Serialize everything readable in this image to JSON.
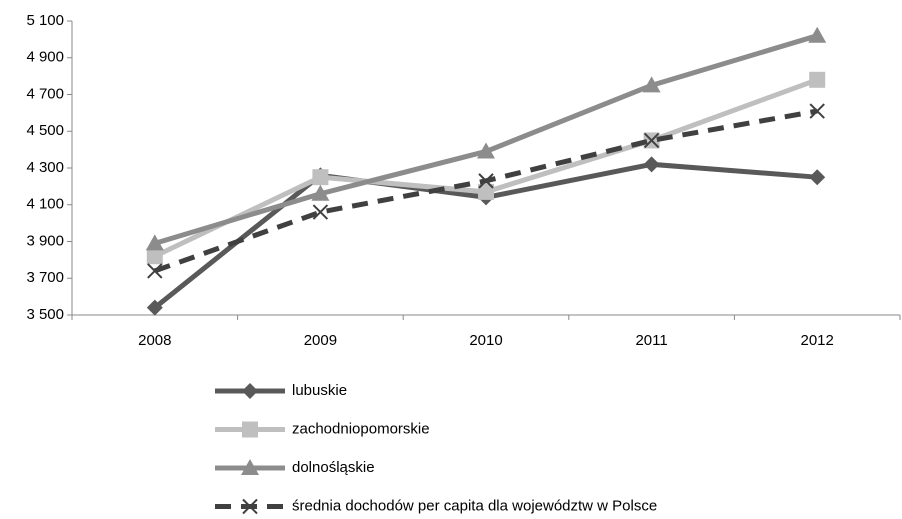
{
  "chart_data": {
    "type": "line",
    "categories": [
      "2008",
      "2009",
      "2010",
      "2011",
      "2012"
    ],
    "series": [
      {
        "name": "lubuskie",
        "color": "#595959",
        "marker": "diamond",
        "values": [
          3540,
          4260,
          4140,
          4320,
          4250
        ]
      },
      {
        "name": "zachodniopomorskie",
        "color": "#bfbfbf",
        "marker": "square",
        "values": [
          3820,
          4250,
          4170,
          4450,
          4780
        ]
      },
      {
        "name": "dolnośląskie",
        "color": "#8c8c8c",
        "marker": "triangle",
        "values": [
          3890,
          4160,
          4390,
          4750,
          5020
        ]
      },
      {
        "name": "średnia dochodów per capita dla województw w Polsce",
        "color": "#404040",
        "marker": "x",
        "dash": true,
        "values": [
          3740,
          4060,
          4230,
          4450,
          4610
        ]
      }
    ],
    "ylim": [
      3500,
      5100
    ],
    "yticks": [
      {
        "value": 3500,
        "label": "3 500"
      },
      {
        "value": 3700,
        "label": "3 700"
      },
      {
        "value": 3900,
        "label": "3 900"
      },
      {
        "value": 4100,
        "label": "4 100"
      },
      {
        "value": 4300,
        "label": "4 300"
      },
      {
        "value": 4500,
        "label": "4 500"
      },
      {
        "value": 4700,
        "label": "4 700"
      },
      {
        "value": 4900,
        "label": "4 900"
      },
      {
        "value": 5100,
        "label": "5 100"
      }
    ],
    "grid": false,
    "legend": "bottom"
  }
}
